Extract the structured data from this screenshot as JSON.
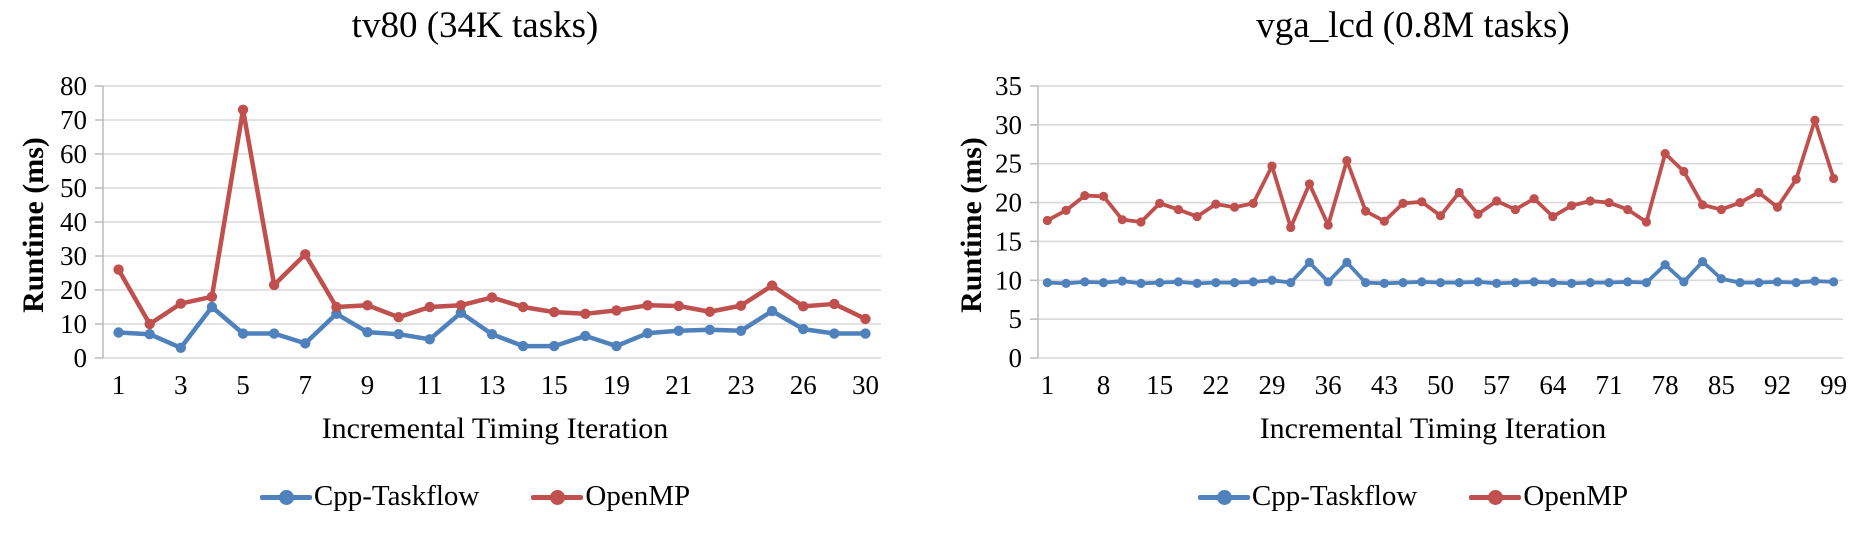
{
  "chart_data": [
    {
      "type": "line",
      "title": "tv80 (34K tasks)",
      "xlabel": "Incremental Timing Iteration",
      "ylabel": "Runtime (ms)",
      "ylim": [
        0,
        80
      ],
      "y_ticks": [
        0,
        10,
        20,
        30,
        40,
        50,
        60,
        70,
        80
      ],
      "x_tick_labels": [
        "1",
        "3",
        "5",
        "7",
        "9",
        "11",
        "13",
        "15",
        "19",
        "21",
        "23",
        "26",
        "30"
      ],
      "x_label_every": 2,
      "n_points": 25,
      "grid": "horizontal",
      "legend_position": "bottom",
      "series": [
        {
          "name": "Cpp-Taskflow",
          "color": "#4F81BD",
          "marker": "circle",
          "values": [
            7.5,
            7,
            3,
            15,
            7.2,
            7.2,
            4.3,
            13,
            7.6,
            7,
            5.5,
            13.3,
            7,
            3.5,
            3.5,
            6.5,
            3.5,
            7.3,
            8,
            8.3,
            8,
            13.8,
            8.5,
            7.2,
            7.2
          ]
        },
        {
          "name": "OpenMP",
          "color": "#C0504D",
          "marker": "circle",
          "values": [
            26,
            10,
            16,
            18,
            73,
            21.5,
            30.5,
            15,
            15.5,
            12,
            15,
            15.5,
            17.8,
            15,
            13.5,
            13,
            14,
            15.5,
            15.3,
            13.6,
            15.4,
            21.3,
            15.2,
            15.9,
            11.5
          ]
        }
      ]
    },
    {
      "type": "line",
      "title": "vga_lcd (0.8M tasks)",
      "xlabel": "Incremental Timing Iteration",
      "ylabel": "Runtime (ms)",
      "ylim": [
        0,
        35
      ],
      "y_ticks": [
        0,
        5,
        10,
        15,
        20,
        25,
        30,
        35
      ],
      "x_tick_labels": [
        "1",
        "8",
        "15",
        "22",
        "29",
        "36",
        "43",
        "50",
        "57",
        "64",
        "71",
        "78",
        "85",
        "92",
        "99"
      ],
      "x_label_every": 3,
      "n_points": 43,
      "grid": "horizontal",
      "legend_position": "bottom",
      "series": [
        {
          "name": "Cpp-Taskflow",
          "color": "#4F81BD",
          "marker": "circle",
          "values": [
            9.7,
            9.6,
            9.8,
            9.7,
            9.9,
            9.6,
            9.7,
            9.8,
            9.6,
            9.7,
            9.7,
            9.8,
            10,
            9.7,
            12.3,
            9.8,
            12.3,
            9.7,
            9.6,
            9.7,
            9.8,
            9.7,
            9.7,
            9.8,
            9.6,
            9.7,
            9.8,
            9.7,
            9.6,
            9.7,
            9.7,
            9.8,
            9.7,
            12,
            9.8,
            12.4,
            10.2,
            9.7,
            9.7,
            9.8,
            9.7,
            9.9,
            9.8
          ]
        },
        {
          "name": "OpenMP",
          "color": "#C0504D",
          "marker": "circle",
          "values": [
            17.7,
            19,
            20.9,
            20.8,
            17.8,
            17.5,
            19.9,
            19.1,
            18.2,
            19.8,
            19.4,
            19.9,
            24.7,
            16.8,
            22.4,
            17.1,
            25.4,
            18.9,
            17.6,
            19.9,
            20.1,
            18.3,
            21.3,
            18.5,
            20.2,
            19.1,
            20.5,
            18.2,
            19.6,
            20.2,
            20,
            19.1,
            17.5,
            26.3,
            24,
            19.7,
            19.1,
            20,
            21.3,
            19.4,
            23,
            30.6,
            23.1
          ]
        }
      ]
    }
  ],
  "style": {
    "gridline_color": "#D9D9D9",
    "axis_color": "#BFBFBF",
    "text_color": "#000000"
  }
}
